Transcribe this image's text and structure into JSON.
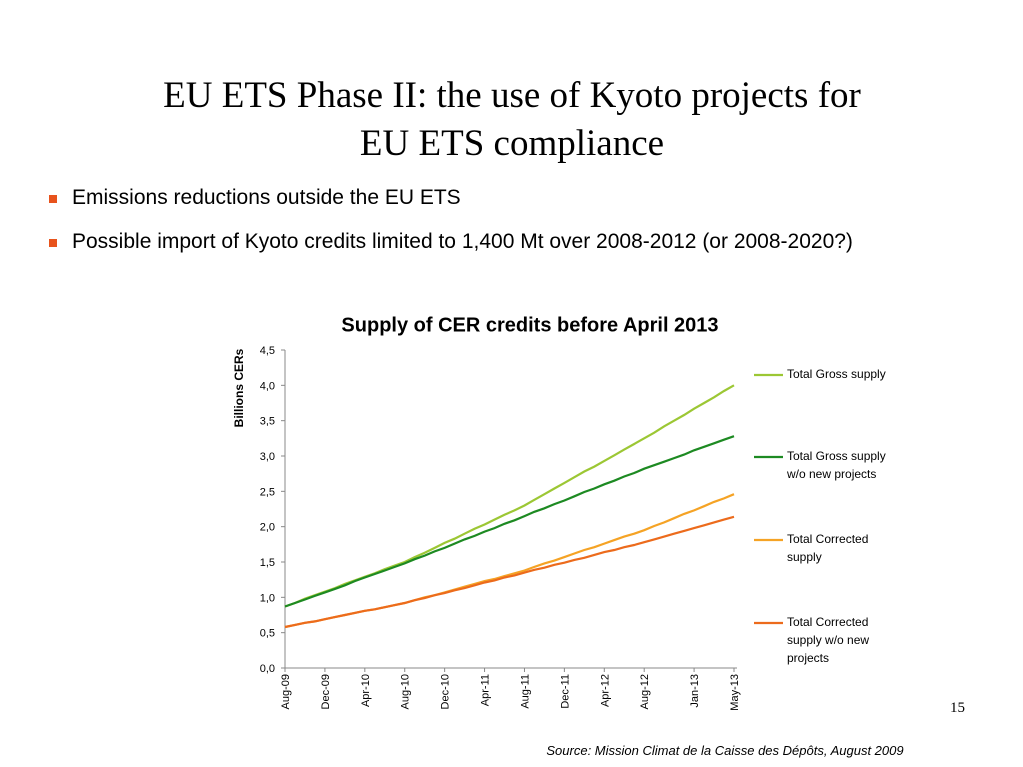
{
  "slide": {
    "title": "EU ETS Phase II: the use of Kyoto projects for EU ETS compliance",
    "bullets": [
      "Emissions reductions outside the EU ETS",
      "Possible import of Kyoto credits limited to 1,400 Mt over 2008-2012 (or 2008-2020?)"
    ],
    "page_number": "15",
    "source": "Source: Mission Climat de la Caisse des Dépôts, August 2009"
  },
  "chart_data": {
    "type": "line",
    "title": "Supply of CER credits before April 2013",
    "y_label": "Billions CERs",
    "categories": [
      "Aug-09",
      null,
      null,
      null,
      "Dec-09",
      null,
      null,
      null,
      "Apr-10",
      null,
      null,
      null,
      "Aug-10",
      null,
      null,
      null,
      "Dec-10",
      null,
      null,
      null,
      "Apr-11",
      null,
      null,
      null,
      "Aug-11",
      null,
      null,
      null,
      "Dec-11",
      null,
      null,
      null,
      "Apr-12",
      null,
      null,
      null,
      "Aug-12",
      null,
      null,
      null,
      null,
      "Jan-13",
      null,
      null,
      null,
      "May-13"
    ],
    "series": [
      {
        "name": "Total Gross supply",
        "color": "#9cc734",
        "values": [
          0.87,
          0.92,
          0.98,
          1.03,
          1.08,
          1.13,
          1.19,
          1.24,
          1.29,
          1.34,
          1.4,
          1.45,
          1.5,
          1.57,
          1.63,
          1.7,
          1.77,
          1.83,
          1.9,
          1.97,
          2.03,
          2.1,
          2.17,
          2.23,
          2.3,
          2.38,
          2.46,
          2.54,
          2.62,
          2.7,
          2.78,
          2.85,
          2.93,
          3.01,
          3.09,
          3.17,
          3.25,
          3.33,
          3.42,
          3.5,
          3.58,
          3.67,
          3.75,
          3.83,
          3.92,
          4.0
        ]
      },
      {
        "name": "Total Gross supply w/o new projects",
        "color": "#1d8a22",
        "values": [
          0.87,
          0.92,
          0.97,
          1.02,
          1.07,
          1.12,
          1.17,
          1.23,
          1.28,
          1.33,
          1.38,
          1.43,
          1.48,
          1.54,
          1.59,
          1.65,
          1.7,
          1.76,
          1.82,
          1.87,
          1.93,
          1.98,
          2.04,
          2.09,
          2.15,
          2.21,
          2.26,
          2.32,
          2.37,
          2.43,
          2.49,
          2.54,
          2.6,
          2.65,
          2.71,
          2.76,
          2.82,
          2.87,
          2.92,
          2.97,
          3.02,
          3.08,
          3.13,
          3.18,
          3.23,
          3.28
        ]
      },
      {
        "name": "Total Corrected supply",
        "color": "#f5a325",
        "values": [
          0.58,
          0.61,
          0.64,
          0.66,
          0.69,
          0.72,
          0.75,
          0.78,
          0.81,
          0.83,
          0.86,
          0.89,
          0.92,
          0.96,
          1.0,
          1.03,
          1.07,
          1.11,
          1.15,
          1.19,
          1.23,
          1.26,
          1.3,
          1.34,
          1.38,
          1.43,
          1.48,
          1.52,
          1.57,
          1.62,
          1.67,
          1.71,
          1.76,
          1.81,
          1.86,
          1.9,
          1.95,
          2.01,
          2.06,
          2.12,
          2.18,
          2.23,
          2.29,
          2.35,
          2.4,
          2.46
        ]
      },
      {
        "name": "Total Corrected supply w/o new projects",
        "color": "#ec6b1c",
        "values": [
          0.58,
          0.61,
          0.64,
          0.66,
          0.69,
          0.72,
          0.75,
          0.78,
          0.81,
          0.83,
          0.86,
          0.89,
          0.92,
          0.96,
          0.99,
          1.03,
          1.06,
          1.1,
          1.13,
          1.17,
          1.21,
          1.24,
          1.28,
          1.31,
          1.35,
          1.39,
          1.42,
          1.46,
          1.49,
          1.53,
          1.56,
          1.6,
          1.64,
          1.67,
          1.71,
          1.74,
          1.78,
          1.82,
          1.86,
          1.9,
          1.94,
          1.98,
          2.02,
          2.06,
          2.1,
          2.14
        ]
      }
    ],
    "ylim": [
      0,
      4.5
    ],
    "yticks": [
      {
        "value": 0,
        "label": "0,0"
      },
      {
        "value": 0.5,
        "label": "0,5"
      },
      {
        "value": 1,
        "label": "1,0"
      },
      {
        "value": 1.5,
        "label": "1,5"
      },
      {
        "value": 2,
        "label": "2,0"
      },
      {
        "value": 2.5,
        "label": "2,5"
      },
      {
        "value": 3,
        "label": "3,0"
      },
      {
        "value": 3.5,
        "label": "3,5"
      },
      {
        "value": 4,
        "label": "4,0"
      },
      {
        "value": 4.5,
        "label": "4,5"
      }
    ],
    "grid": false,
    "legend": "right"
  }
}
